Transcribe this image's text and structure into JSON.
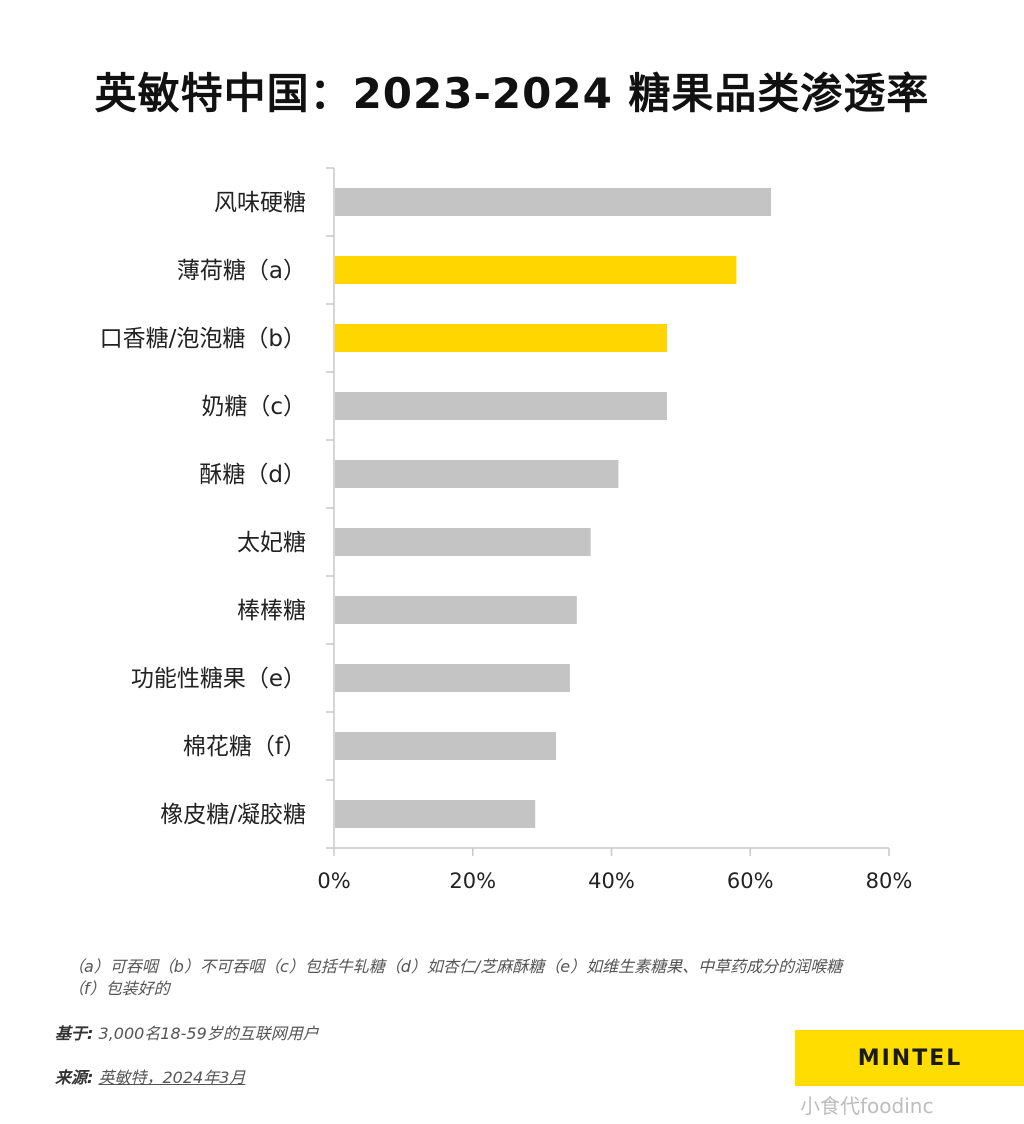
{
  "title": "英敏特中国：2023-2024 糖果品类渗透率",
  "chart_data": {
    "type": "bar",
    "orientation": "horizontal",
    "categories": [
      "风味硬糖",
      "薄荷糖（a）",
      "口香糖/泡泡糖（b）",
      "奶糖（c）",
      "酥糖（d）",
      "太妃糖",
      "棒棒糖",
      "功能性糖果（e）",
      "棉花糖（f）",
      "橡皮糖/凝胶糖"
    ],
    "values": [
      63,
      58,
      48,
      48,
      41,
      37,
      35,
      34,
      32,
      29
    ],
    "highlight": [
      false,
      true,
      true,
      false,
      false,
      false,
      false,
      false,
      false,
      false
    ],
    "xlim": [
      0,
      80
    ],
    "xticks": [
      0,
      20,
      40,
      60,
      80
    ],
    "xtick_labels": [
      "0%",
      "20%",
      "40%",
      "60%",
      "80%"
    ],
    "colors": {
      "default": "#c4c4c4",
      "highlight": "#ffd600"
    },
    "xlabel": "",
    "ylabel": ""
  },
  "footnotes": {
    "line1": "（a）可吞咽（b）不可吞咽（c）包括牛轧糖（d）如杏仁/芝麻酥糖（e）如维生素糖果、中草药成分的润喉糖",
    "line2": "（f）包装好的"
  },
  "base": {
    "label": "基于:",
    "text": " 3,000名18-59岁的互联网用户"
  },
  "source": {
    "label": "来源:",
    "text": "英敏特，2024年3月"
  },
  "logo": "MINTEL",
  "watermark": "小食代foodinc"
}
